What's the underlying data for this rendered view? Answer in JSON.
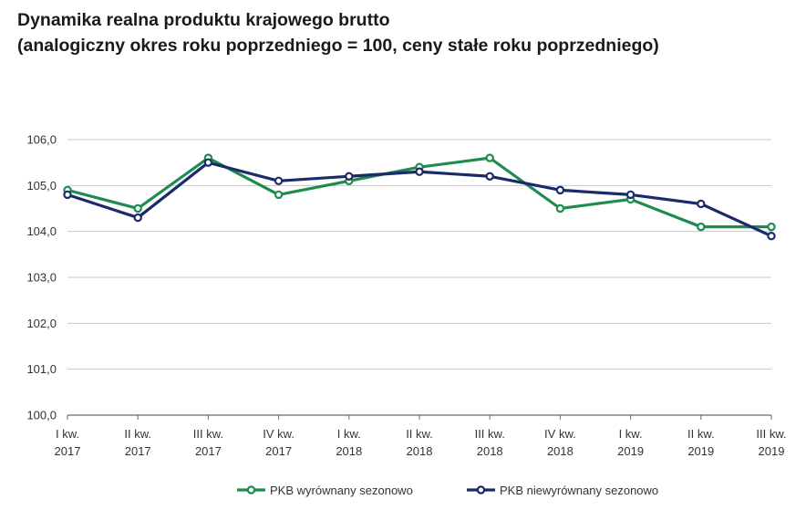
{
  "chart_data": {
    "type": "line",
    "title": "Dynamika realna produktu krajowego brutto",
    "subtitle": "(analogiczny okres roku poprzedniego = 100, ceny stałe roku poprzedniego)",
    "categories": [
      [
        "I kw.",
        "2017"
      ],
      [
        "II kw.",
        "2017"
      ],
      [
        "III kw.",
        "2017"
      ],
      [
        "IV kw.",
        "2017"
      ],
      [
        "I kw.",
        "2018"
      ],
      [
        "II kw.",
        "2018"
      ],
      [
        "III kw.",
        "2018"
      ],
      [
        "IV kw.",
        "2018"
      ],
      [
        "I kw.",
        "2019"
      ],
      [
        "II kw.",
        "2019"
      ],
      [
        "III kw.",
        "2019"
      ]
    ],
    "series": [
      {
        "name": "PKB wyrównany sezonowo",
        "color": "#1e8c4e",
        "values": [
          104.9,
          104.5,
          105.6,
          104.8,
          105.1,
          105.4,
          105.6,
          104.5,
          104.7,
          104.1,
          104.1
        ]
      },
      {
        "name": "PKB niewyrównany sezonowo",
        "color": "#1b2a6b",
        "values": [
          104.8,
          104.3,
          105.5,
          105.1,
          105.2,
          105.3,
          105.2,
          104.9,
          104.8,
          104.6,
          103.9
        ]
      }
    ],
    "yticks": [
      "100,0",
      "101,0",
      "102,0",
      "103,0",
      "104,0",
      "105,0",
      "106,0"
    ],
    "ylim": [
      100,
      106
    ],
    "xlabel": "",
    "ylabel": "",
    "grid": true,
    "legend_position": "bottom-center"
  }
}
